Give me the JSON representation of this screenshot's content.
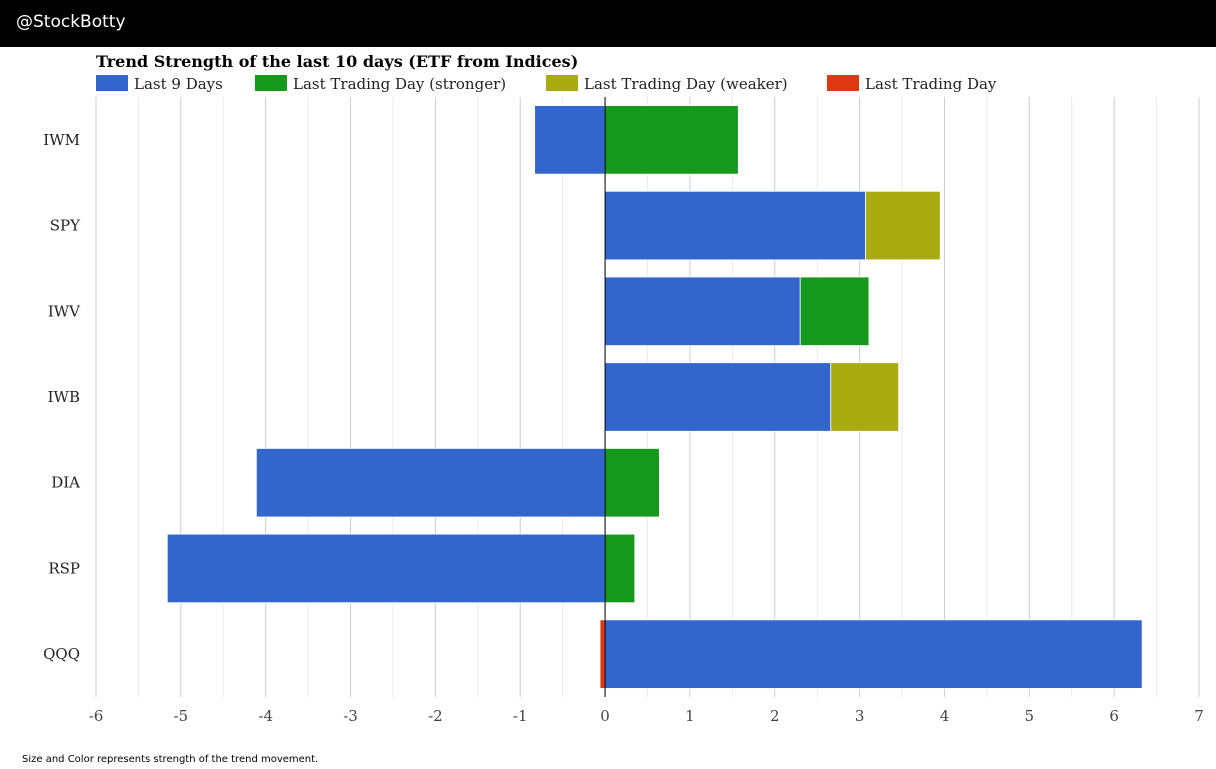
{
  "header": {
    "brand": "@StockBotty"
  },
  "footer": {
    "note": "Size and Color represents strength of the trend movement."
  },
  "colors": {
    "last9": "#3366cc",
    "stronger": "#14991c",
    "weaker": "#aaaa11",
    "last": "#dc3912"
  },
  "chart_data": {
    "type": "bar",
    "orientation": "horizontal",
    "stacked": true,
    "title": "Trend Strength of the last 10 days (ETF from Indices)",
    "xlim": [
      -6,
      7
    ],
    "xticks": [
      "-6",
      "-5",
      "-4",
      "-3",
      "-2",
      "-1",
      "0",
      "1",
      "2",
      "3",
      "4",
      "5",
      "6",
      "7"
    ],
    "legend": [
      {
        "label": "Last 9 Days",
        "color": "#3366cc"
      },
      {
        "label": "Last Trading Day (stronger)",
        "color": "#14991c"
      },
      {
        "label": "Last Trading Day (weaker)",
        "color": "#aaaa11"
      },
      {
        "label": "Last Trading Day",
        "color": "#dc3912"
      }
    ],
    "categories": [
      "IWM",
      "SPY",
      "IWV",
      "IWB",
      "DIA",
      "RSP",
      "QQQ"
    ],
    "series": [
      {
        "name": "Last 9 Days",
        "color": "#3366cc",
        "values": [
          -0.83,
          3.07,
          2.3,
          2.66,
          -4.11,
          -5.16,
          6.33
        ]
      },
      {
        "name": "Last Trading Day (stronger)",
        "color": "#14991c",
        "values": [
          1.57,
          0,
          0.81,
          0,
          0.64,
          0.35,
          0
        ]
      },
      {
        "name": "Last Trading Day (weaker)",
        "color": "#aaaa11",
        "values": [
          0,
          0.88,
          0,
          0.8,
          0,
          0,
          0
        ]
      },
      {
        "name": "Last Trading Day",
        "color": "#dc3912",
        "values": [
          0,
          0,
          0,
          0,
          0,
          0,
          -0.06
        ]
      }
    ]
  }
}
